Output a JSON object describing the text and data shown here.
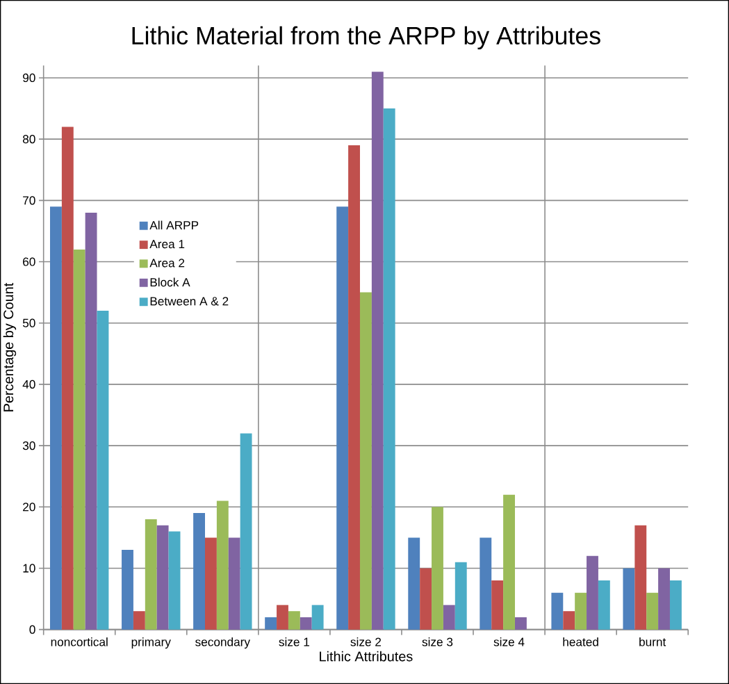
{
  "chart_data": {
    "type": "bar",
    "title": "Lithic Material from the ARPP by Attributes",
    "xlabel": "Lithic Attributes",
    "ylabel": "Percentage by Count",
    "categories": [
      "noncortical",
      "primary",
      "secondary",
      "size 1",
      "size 2",
      "size 3",
      "size 4",
      "heated",
      "burnt"
    ],
    "series": [
      {
        "name": "All ARPP",
        "color": "#4f81bd",
        "values": [
          69,
          13,
          19,
          2,
          69,
          15,
          15,
          6,
          10
        ]
      },
      {
        "name": "Area 1",
        "color": "#c0504d",
        "values": [
          82,
          3,
          15,
          4,
          79,
          10,
          8,
          3,
          17
        ]
      },
      {
        "name": "Area 2",
        "color": "#9bbb59",
        "values": [
          62,
          18,
          21,
          3,
          55,
          20,
          22,
          6,
          6
        ]
      },
      {
        "name": "Block A",
        "color": "#8064a2",
        "values": [
          68,
          17,
          15,
          2,
          91,
          4,
          2,
          12,
          10
        ]
      },
      {
        "name": "Between A & 2",
        "color": "#4bacc6",
        "values": [
          52,
          16,
          32,
          4,
          85,
          11,
          null,
          8,
          8
        ]
      }
    ],
    "ylim": [
      0,
      92
    ],
    "yticks": [
      0,
      10,
      20,
      30,
      40,
      50,
      60,
      70,
      80,
      90
    ],
    "grid": "y",
    "legend": "left"
  }
}
